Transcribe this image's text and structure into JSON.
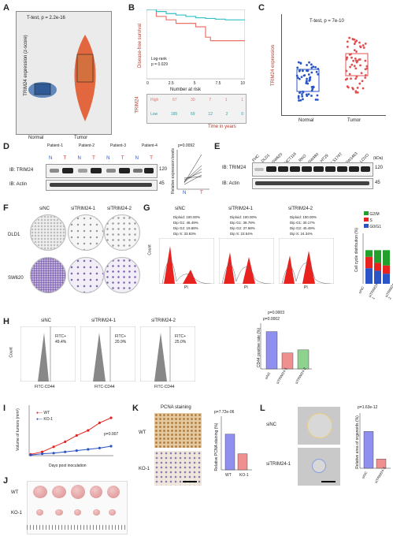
{
  "panels": {
    "A": {
      "label": "A",
      "ylabel": "TRIM24 expression (z-score)",
      "stat": "T-test, p = 2.2e-16",
      "groups": [
        "Normal",
        "Tumor"
      ],
      "yticks": [
        "-2",
        "-1",
        "0",
        "1",
        "2"
      ],
      "colors": {
        "normal": "#3d6fb0",
        "tumor": "#e05020"
      }
    },
    "B": {
      "label": "B",
      "ylabel": "Disease-free survival",
      "logrank": "Log-rank",
      "p": "p = 0.029",
      "xticks": [
        "0",
        "2.5",
        "5",
        "7.5",
        "10"
      ],
      "yticks": [
        "0.00",
        "0.25",
        "0.50",
        "0.75",
        "1.00"
      ],
      "risk_title": "Number at risk",
      "risk_ylabel": "TRIM24",
      "rows": [
        {
          "name": "High",
          "values": [
            "67",
            "30",
            "7",
            "1",
            "1"
          ],
          "color": "#e8736b"
        },
        {
          "name": "Low",
          "values": [
            "185",
            "69",
            "12",
            "2",
            "0"
          ],
          "color": "#33c1c6"
        }
      ],
      "xlabel": "Time in years"
    },
    "C": {
      "label": "C",
      "ylabel": "TRIM24 expression",
      "stat": "T-test, p = 7e-10",
      "groups": [
        "Normal",
        "Tumor"
      ],
      "yticks": [
        "-1.0",
        "-0.5",
        "0.0",
        "0.5",
        "1.0"
      ]
    },
    "D": {
      "label": "D",
      "patients": [
        "Patient-1",
        "Patient-2",
        "Patient-3",
        "Patient-4"
      ],
      "nt": [
        "N",
        "T",
        "N",
        "T",
        "N",
        "T",
        "N",
        "T"
      ],
      "ib1": "IB: TRIM24",
      "ib2": "IB: Actin",
      "kda": [
        "120",
        "45"
      ],
      "p": "p=0.0092",
      "ylabel": "Relative expression levels",
      "xcats": [
        "N",
        "T"
      ]
    },
    "E": {
      "label": "E",
      "lanes": [
        "FHC",
        "DLD1",
        "SW620",
        "HCT116",
        "RKO",
        "SW480",
        "HT29",
        "LS174T",
        "SW1463",
        "LOVO"
      ],
      "ib1": "IB: TRIM24",
      "ib2": "IB: Actin",
      "kda_header": "(kDa)",
      "kda": [
        "120",
        "45"
      ]
    },
    "F": {
      "label": "F",
      "cols": [
        "siNC",
        "siTRIM24-1",
        "siTRIM24-2"
      ],
      "rows": [
        "DLD1",
        "SW620"
      ]
    },
    "G": {
      "label": "G",
      "cols": [
        {
          "name": "siNC",
          "lines": [
            "Diploid: 100.00%",
            "Dip G1: 46.49%",
            "Dip G2: 19.68%",
            "Dip S: 33.83%"
          ]
        },
        {
          "name": "siTRIM24-1",
          "lines": [
            "Diploid: 100.00%",
            "Dip G1: 38.78%",
            "Dip G2: 37.68%",
            "Dip S: 23.54%"
          ]
        },
        {
          "name": "siTRIM24-2",
          "lines": [
            "Diploid: 100.00%",
            "Dip G1: 30.17%",
            "Dip G2: 45.49%",
            "Dip S: 24.34%"
          ]
        }
      ],
      "ylabel": "Count",
      "xlabel": "PI",
      "bar_ylabel": "Cell cycle distribution (%)",
      "legend": [
        "G2/M",
        "S",
        "G0/G1"
      ],
      "cats": [
        "siNC",
        "siTRIM24-1",
        "siTRIM24-2"
      ]
    },
    "H": {
      "label": "H",
      "cols": [
        {
          "name": "siNC",
          "fitc": "FITC+",
          "val": "49.4%"
        },
        {
          "name": "siTRIM24-1",
          "fitc": "FITC+",
          "val": "20.9%"
        },
        {
          "name": "siTRIM24-2",
          "fitc": "FITC+",
          "val": "25.0%"
        }
      ],
      "xlabel": "FITC-CD44",
      "ylabel": "Count",
      "bar_ylabel": "CD44 positive rate (%)",
      "p1": "p=0.0002",
      "p2": "p=0.0003",
      "cats": [
        "siNC",
        "siTRIM24-1",
        "siTRIM24-2"
      ]
    },
    "I": {
      "label": "I",
      "ylabel": "Volume of tumors (mm³)",
      "xlabel": "Days post inoculation",
      "legend": [
        "WT",
        "KO-1"
      ],
      "p": "p=0.007",
      "xticks": [
        "6",
        "9",
        "12",
        "15",
        "18",
        "21",
        "24",
        "27"
      ],
      "yticks": [
        "0",
        "100",
        "200",
        "300",
        "400"
      ]
    },
    "J": {
      "label": "J",
      "rows": [
        "WT",
        "KO-1"
      ]
    },
    "K": {
      "label": "K",
      "title": "PCNA staining",
      "rows": [
        "WT",
        "KO-1"
      ],
      "p": "p=7.72e-06",
      "ylabel": "Relative PCNA staining (%)",
      "cats": [
        "WT",
        "KO-1"
      ]
    },
    "L": {
      "label": "L",
      "rows": [
        "siNC",
        "siTRIM24-1"
      ],
      "p": "p=1.63e-12",
      "ylabel": "Relative area of organoids (%)",
      "cats": [
        "siNC",
        "siTRIM24-1"
      ]
    }
  },
  "chart_data": [
    {
      "panel": "B",
      "type": "line",
      "xlabel": "Time in years",
      "ylabel": "Disease-free survival",
      "xlim": [
        0,
        10
      ],
      "ylim": [
        0,
        1
      ],
      "series": [
        {
          "name": "High",
          "x": [
            0,
            1,
            2,
            3,
            4,
            5,
            6,
            6.5,
            10
          ],
          "y": [
            1,
            0.9,
            0.85,
            0.8,
            0.8,
            0.75,
            0.6,
            0.55,
            0.55
          ]
        },
        {
          "name": "Low",
          "x": [
            0,
            1,
            2,
            3,
            4,
            5,
            6,
            7,
            8,
            10
          ],
          "y": [
            1,
            0.97,
            0.94,
            0.92,
            0.9,
            0.88,
            0.87,
            0.86,
            0.85,
            0.85
          ]
        }
      ]
    },
    {
      "panel": "G",
      "type": "bar",
      "stacked": true,
      "categories": [
        "siNC",
        "siTRIM24-1",
        "siTRIM24-2"
      ],
      "series": [
        {
          "name": "G0/G1",
          "values": [
            46.49,
            38.78,
            30.17
          ]
        },
        {
          "name": "S",
          "values": [
            33.83,
            23.54,
            24.34
          ]
        },
        {
          "name": "G2/M",
          "values": [
            19.68,
            37.68,
            45.49
          ]
        }
      ],
      "ylim": [
        0,
        150
      ]
    },
    {
      "panel": "H",
      "type": "bar",
      "categories": [
        "siNC",
        "siTRIM24-1",
        "siTRIM24-2"
      ],
      "values": [
        49,
        21,
        25
      ],
      "ylim": [
        0,
        60
      ]
    },
    {
      "panel": "I",
      "type": "line",
      "x": [
        6,
        9,
        12,
        15,
        18,
        21,
        24,
        27
      ],
      "series": [
        {
          "name": "WT",
          "values": [
            10,
            30,
            70,
            110,
            160,
            200,
            260,
            300
          ]
        },
        {
          "name": "KO-1",
          "values": [
            5,
            15,
            20,
            30,
            40,
            50,
            60,
            75
          ]
        }
      ],
      "ylim": [
        0,
        400
      ]
    },
    {
      "panel": "K",
      "type": "bar",
      "categories": [
        "WT",
        "KO-1"
      ],
      "values": [
        100,
        45
      ],
      "ylim": [
        0,
        150
      ]
    },
    {
      "panel": "L",
      "type": "bar",
      "categories": [
        "siNC",
        "siTRIM24-1"
      ],
      "values": [
        100,
        25
      ],
      "ylim": [
        0,
        150
      ]
    }
  ]
}
